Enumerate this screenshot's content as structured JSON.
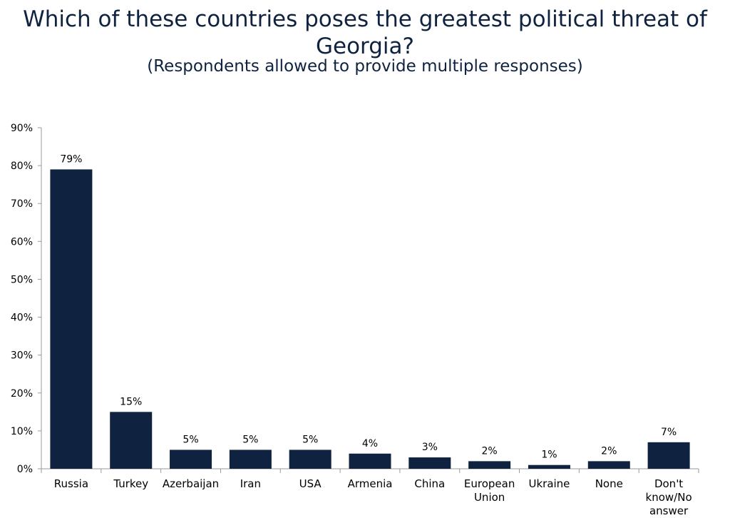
{
  "title_line1": "Which of these countries poses the greatest political threat of",
  "title_line2": "Georgia?",
  "subtitle": "(Respondents allowed to provide multiple responses)",
  "colors": {
    "bar": "#0f2340",
    "axis": "#9a9a9a",
    "text": "#000000",
    "title": "#0f2340"
  },
  "chart_data": {
    "type": "bar",
    "title": "Which of these countries poses the greatest political threat of Georgia?",
    "subtitle": "(Respondents allowed to provide multiple responses)",
    "categories": [
      [
        "Russia"
      ],
      [
        "Turkey"
      ],
      [
        "Azerbaijan"
      ],
      [
        "Iran"
      ],
      [
        "USA"
      ],
      [
        "Armenia"
      ],
      [
        "China"
      ],
      [
        "European",
        "Union"
      ],
      [
        "Ukraine"
      ],
      [
        "None"
      ],
      [
        "Don't",
        "know/No",
        "answer"
      ]
    ],
    "values": [
      79,
      15,
      5,
      5,
      5,
      4,
      3,
      2,
      1,
      2,
      7
    ],
    "value_labels": [
      "79%",
      "15%",
      "5%",
      "5%",
      "5%",
      "4%",
      "3%",
      "2%",
      "1%",
      "2%",
      "7%"
    ],
    "ylim": [
      0,
      90
    ],
    "yticks": [
      0,
      10,
      20,
      30,
      40,
      50,
      60,
      70,
      80,
      90
    ],
    "ytick_labels": [
      "0%",
      "10%",
      "20%",
      "30%",
      "40%",
      "50%",
      "60%",
      "70%",
      "80%",
      "90%"
    ],
    "grid": false,
    "legend": "none"
  }
}
